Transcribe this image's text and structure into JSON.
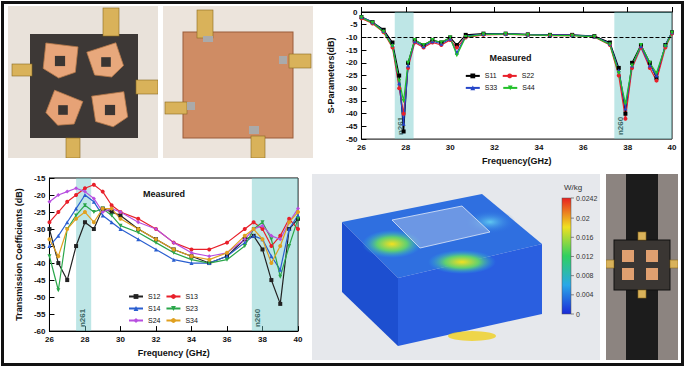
{
  "chart_data": [
    {
      "type": "line",
      "annotation": "Measured",
      "x_label": "Frequency(GHz)",
      "y_label": "S-Parameters(dB)",
      "x": [
        26,
        26.5,
        27,
        27.4,
        27.7,
        27.9,
        28.1,
        28.4,
        28.8,
        29.2,
        29.6,
        30,
        30.3,
        30.7,
        31.5,
        32.5,
        33.5,
        34.5,
        35.5,
        36.5,
        37.2,
        37.6,
        37.9,
        38.2,
        38.6,
        39,
        39.3,
        39.7,
        40
      ],
      "series": [
        {
          "name": "S11",
          "color": "#000000",
          "marker": "square",
          "values": [
            -2,
            -4,
            -7,
            -12,
            -25,
            -47,
            -20,
            -11,
            -13,
            -11,
            -12,
            -10,
            -13,
            -9,
            -8.5,
            -8.5,
            -8.8,
            -9,
            -9,
            -9.5,
            -12,
            -22,
            -40,
            -20,
            -13,
            -20,
            -26,
            -13,
            -8
          ]
        },
        {
          "name": "S22",
          "color": "#e8202a",
          "marker": "circle",
          "values": [
            -2.5,
            -4.5,
            -8,
            -14,
            -30,
            -40,
            -22,
            -12,
            -14,
            -12,
            -13,
            -11,
            -14,
            -10,
            -9,
            -8.8,
            -9,
            -9.3,
            -9.2,
            -9.8,
            -13,
            -25,
            -42,
            -22,
            -14,
            -22,
            -27,
            -14,
            -8.5
          ]
        },
        {
          "name": "S33",
          "color": "#2545c8",
          "marker": "triangle",
          "values": [
            -2,
            -4,
            -7.5,
            -13,
            -28,
            -44,
            -21,
            -11.5,
            -13.5,
            -11.5,
            -12.5,
            -10.5,
            -16,
            -9.5,
            -8.7,
            -8.6,
            -8.9,
            -9.1,
            -9.1,
            -9.6,
            -12.5,
            -23,
            -38,
            -21,
            -13.5,
            -21,
            -25,
            -13,
            -8
          ]
        },
        {
          "name": "S44",
          "color": "#22c02a",
          "marker": "triangle-down",
          "values": [
            -2.2,
            -4.2,
            -7.8,
            -13.5,
            -27,
            -35,
            -20,
            -11,
            -13,
            -11,
            -12,
            -10,
            -17,
            -9.8,
            -8.8,
            -8.7,
            -9,
            -9.2,
            -9.3,
            -9.7,
            -12.8,
            -24,
            -36,
            -21,
            -13,
            -20,
            -24,
            -13.5,
            -8.2
          ]
        }
      ],
      "xlim": [
        26,
        40
      ],
      "xticks": [
        26,
        28,
        30,
        32,
        34,
        36,
        38,
        40
      ],
      "ylim": [
        -50,
        0
      ],
      "yticks": [
        -50,
        -45,
        -40,
        -35,
        -30,
        -25,
        -20,
        -15,
        -10,
        -5,
        0
      ],
      "threshold": -10,
      "bands": [
        {
          "label": "n261",
          "range": [
            27.5,
            28.35
          ]
        },
        {
          "label": "n260",
          "range": [
            37.4,
            40
          ]
        }
      ],
      "legend": "center",
      "grid": false
    },
    {
      "type": "line",
      "annotation": "Measured",
      "x_label": "Frequency (GHz)",
      "y_label": "Transmission Coefficients (dB)",
      "x": [
        26,
        26.5,
        27,
        27.5,
        28,
        28.5,
        29,
        29.5,
        30,
        31,
        32,
        33,
        34,
        35,
        36,
        37,
        37.5,
        38,
        38.5,
        39,
        39.5,
        40
      ],
      "series": [
        {
          "name": "S12",
          "color": "#222222",
          "marker": "square",
          "values": [
            -30,
            -40,
            -45,
            -35,
            -28,
            -30,
            -24,
            -25,
            -26,
            -30,
            -33,
            -36,
            -38,
            -40,
            -38,
            -33,
            -32,
            -36,
            -45,
            -52,
            -30,
            -27
          ]
        },
        {
          "name": "S13",
          "color": "#e8202a",
          "marker": "circle",
          "values": [
            -28,
            -25,
            -22,
            -20,
            -18,
            -17,
            -19,
            -23,
            -25,
            -27,
            -30,
            -34,
            -36,
            -36,
            -34,
            -30,
            -28,
            -30,
            -35,
            -32,
            -27,
            -30
          ]
        },
        {
          "name": "S14",
          "color": "#2a5fd0",
          "marker": "triangle",
          "values": [
            -35,
            -32,
            -28,
            -24,
            -20,
            -22,
            -26,
            -28,
            -30,
            -33,
            -36,
            -39,
            -40,
            -40,
            -38,
            -34,
            -32,
            -33,
            -38,
            -42,
            -30,
            -26
          ]
        },
        {
          "name": "S23",
          "color": "#2aa64a",
          "marker": "triangle-down",
          "values": [
            -38,
            -48,
            -30,
            -26,
            -23,
            -25,
            -24,
            -26,
            -29,
            -31,
            -34,
            -37,
            -39,
            -40,
            -39,
            -35,
            -30,
            -28,
            -33,
            -44,
            -35,
            -27
          ]
        },
        {
          "name": "S24",
          "color": "#b84fe0",
          "marker": "diamond",
          "values": [
            -22,
            -20,
            -19,
            -18,
            -19,
            -21,
            -25,
            -24,
            -25,
            -28,
            -30,
            -34,
            -37,
            -38,
            -37,
            -33,
            -30,
            -29,
            -32,
            -33,
            -28,
            -24
          ]
        },
        {
          "name": "S34",
          "color": "#e0a020",
          "marker": "circle",
          "values": [
            -33,
            -38,
            -30,
            -27,
            -25,
            -28,
            -24,
            -24,
            -27,
            -30,
            -33,
            -36,
            -38,
            -39,
            -37,
            -32,
            -30,
            -33,
            -40,
            -35,
            -28,
            -25
          ]
        }
      ],
      "xlim": [
        26,
        40
      ],
      "xticks": [
        26,
        28,
        30,
        32,
        34,
        36,
        38,
        40
      ],
      "ylim": [
        -60,
        -15
      ],
      "yticks": [
        -60,
        -55,
        -50,
        -45,
        -40,
        -35,
        -30,
        -25,
        -20,
        -15
      ],
      "bands": [
        {
          "label": "n261",
          "range": [
            27.5,
            28.35
          ]
        },
        {
          "label": "n260",
          "range": [
            37.4,
            40
          ]
        }
      ],
      "legend": "bottom",
      "grid": false
    }
  ],
  "sar_colorbar": {
    "unit": "W/kg",
    "range": [
      0,
      0.0242
    ],
    "ticks": [
      0,
      0.004,
      0.008,
      0.012,
      0.016,
      0.02,
      0.0242
    ]
  }
}
